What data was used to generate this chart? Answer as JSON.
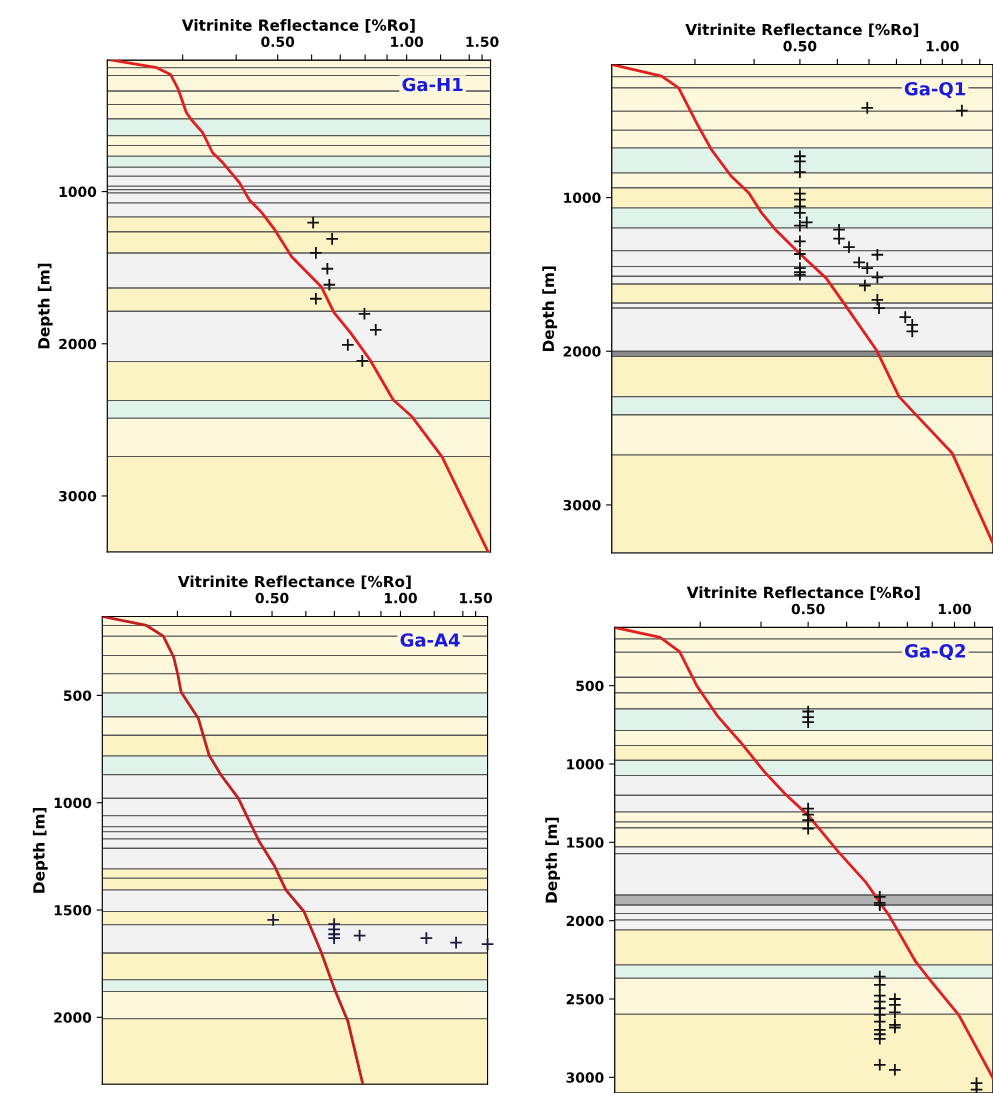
{
  "chart_data": [
    {
      "type": "line",
      "xlabel": "Vitrinite Reflectance [%Ro]",
      "ylabel": "Depth [m]",
      "annotations": [
        "Ga-H1"
      ],
      "log": "x",
      "xlim": [
        0.2,
        1.57
      ],
      "ylim": [
        3368,
        136
      ],
      "xticks": [
        {
          "value": 0.3,
          "label": null
        },
        {
          "value": 0.4,
          "label": null
        },
        {
          "value": 0.5,
          "label": "0.50"
        },
        {
          "value": 0.6,
          "label": null
        },
        {
          "value": 0.7,
          "label": null
        },
        {
          "value": 0.8,
          "label": null
        },
        {
          "value": 0.9,
          "label": null
        },
        {
          "value": 1.0,
          "label": "1.00"
        },
        {
          "value": 1.2,
          "label": null
        },
        {
          "value": 1.4,
          "label": null
        },
        {
          "value": 1.5,
          "label": "1.50"
        }
      ],
      "yticks": [
        1000,
        2000,
        3000
      ],
      "series": [
        {
          "color": "#e02020",
          "x": [
            0.205,
            0.261,
            0.281,
            0.293,
            0.306,
            0.314,
            0.334,
            0.352,
            0.372,
            0.407,
            0.429,
            0.459,
            0.492,
            0.539,
            0.632,
            0.677,
            0.74,
            0.821,
            0.93,
            1.03,
            1.21,
            1.55
          ],
          "values": [
            136,
            186,
            230,
            329,
            480,
            526,
            612,
            743,
            809,
            941,
            1053,
            1138,
            1250,
            1428,
            1625,
            1796,
            1928,
            2105,
            2368,
            2480,
            2743,
            3368
          ]
        },
        {
          "type": "scatter",
          "marker": "cross",
          "color": "#111111",
          "x": [
            0.605,
            0.67,
            0.614,
            0.653,
            0.66,
            0.614,
            0.797,
            0.847,
            0.729,
            0.788
          ],
          "values": [
            1204,
            1311,
            1403,
            1507,
            1612,
            1704,
            1803,
            1908,
            2007,
            2112
          ]
        }
      ],
      "bands": [
        {
          "axis": "y",
          "from": 136,
          "to": 186,
          "color": "#fdf8dc"
        },
        {
          "axis": "y",
          "from": 186,
          "to": 237,
          "color": "#fdf8dc"
        },
        {
          "axis": "y",
          "from": 237,
          "to": 340,
          "color": "#fdf8dc"
        },
        {
          "axis": "y",
          "from": 340,
          "to": 428,
          "color": "#fdf8dc"
        },
        {
          "axis": "y",
          "from": 428,
          "to": 522,
          "color": "#fdf8dc"
        },
        {
          "axis": "y",
          "from": 522,
          "to": 632,
          "color": "#e0f3ea"
        },
        {
          "axis": "y",
          "from": 632,
          "to": 697,
          "color": "#fdf8dc"
        },
        {
          "axis": "y",
          "from": 697,
          "to": 768,
          "color": "#fdf8dc"
        },
        {
          "axis": "y",
          "from": 768,
          "to": 840,
          "color": "#e0f3ea"
        },
        {
          "axis": "y",
          "from": 840,
          "to": 899,
          "color": "#f2f2f2"
        },
        {
          "axis": "y",
          "from": 899,
          "to": 965,
          "color": "#f2f2f2"
        },
        {
          "axis": "y",
          "from": 965,
          "to": 987,
          "color": "#f2f2f2"
        },
        {
          "axis": "y",
          "from": 987,
          "to": 1009,
          "color": "#f2f2f2"
        },
        {
          "axis": "y",
          "from": 1009,
          "to": 1075,
          "color": "#f2f2f2"
        },
        {
          "axis": "y",
          "from": 1075,
          "to": 1167,
          "color": "#f2f2f2"
        },
        {
          "axis": "y",
          "from": 1167,
          "to": 1265,
          "color": "#fbf3c4"
        },
        {
          "axis": "y",
          "from": 1265,
          "to": 1404,
          "color": "#fbf3c4"
        },
        {
          "axis": "y",
          "from": 1404,
          "to": 1634,
          "color": "#f2f2f2"
        },
        {
          "axis": "y",
          "from": 1634,
          "to": 1787,
          "color": "#fbf3c4"
        },
        {
          "axis": "y",
          "from": 1787,
          "to": 2116,
          "color": "#f2f2f2"
        },
        {
          "axis": "y",
          "from": 2116,
          "to": 2373,
          "color": "#fbf3c4"
        },
        {
          "axis": "y",
          "from": 2373,
          "to": 2489,
          "color": "#e0f3ea"
        },
        {
          "axis": "y",
          "from": 2489,
          "to": 2741,
          "color": "#fdf8dc"
        },
        {
          "axis": "y",
          "from": 2741,
          "to": 3368,
          "color": "#fbf3c4"
        }
      ]
    },
    {
      "type": "line",
      "xlabel": "Vitrinite Reflectance [%Ro]",
      "ylabel": "Depth [m]",
      "annotations": [
        "Ga-Q1"
      ],
      "log": "x",
      "xlim": [
        0.2,
        1.28
      ],
      "ylim": [
        3313,
        134
      ],
      "xticks": [
        {
          "value": 0.3,
          "label": null
        },
        {
          "value": 0.4,
          "label": null
        },
        {
          "value": 0.5,
          "label": "0.50"
        },
        {
          "value": 0.6,
          "label": null
        },
        {
          "value": 0.7,
          "label": null
        },
        {
          "value": 0.8,
          "label": null
        },
        {
          "value": 0.9,
          "label": null
        },
        {
          "value": 1.0,
          "label": "1.00"
        },
        {
          "value": 1.1,
          "label": null
        },
        {
          "value": 1.2,
          "label": null
        }
      ],
      "yticks": [
        1000,
        2000,
        3000
      ],
      "series": [
        {
          "color": "#e02020",
          "x": [
            0.2,
            0.255,
            0.277,
            0.305,
            0.325,
            0.358,
            0.39,
            0.415,
            0.444,
            0.498,
            0.568,
            0.626,
            0.725,
            0.81,
            0.88,
            1.05,
            1.28
          ],
          "values": [
            134,
            210,
            286,
            536,
            688,
            861,
            970,
            1100,
            1209,
            1361,
            1524,
            1708,
            1990,
            2295,
            2414,
            2664,
            3250
          ]
        },
        {
          "type": "scatter",
          "marker": "cross",
          "color": "#111111",
          "x": [
            0.694,
            1.1,
            0.5,
            0.5,
            0.5,
            0.5,
            0.5,
            0.5,
            0.5,
            0.517,
            0.5,
            0.5,
            0.5,
            0.5,
            0.5,
            0.5,
            0.605,
            0.605,
            0.635,
            0.729,
            0.667,
            0.694,
            0.729,
            0.686,
            0.729,
            0.735,
            0.835,
            0.864,
            0.864
          ],
          "values": [
            416,
            434,
            731,
            764,
            835,
            974,
            1013,
            1057,
            1100,
            1161,
            1183,
            1285,
            1367,
            1459,
            1485,
            1502,
            1209,
            1267,
            1322,
            1372,
            1422,
            1459,
            1519,
            1572,
            1665,
            1719,
            1778,
            1828,
            1871
          ]
        }
      ],
      "bands": [
        {
          "axis": "y",
          "from": 134,
          "to": 214,
          "color": "#fdf8dc"
        },
        {
          "axis": "y",
          "from": 214,
          "to": 286,
          "color": "#fdf8dc"
        },
        {
          "axis": "y",
          "from": 286,
          "to": 438,
          "color": "#fdf8dc"
        },
        {
          "axis": "y",
          "from": 438,
          "to": 562,
          "color": "#fdf8dc"
        },
        {
          "axis": "y",
          "from": 562,
          "to": 677,
          "color": "#fdf8dc"
        },
        {
          "axis": "y",
          "from": 677,
          "to": 840,
          "color": "#e0f3ea"
        },
        {
          "axis": "y",
          "from": 840,
          "to": 937,
          "color": "#fdf8dc"
        },
        {
          "axis": "y",
          "from": 937,
          "to": 1068,
          "color": "#fbf3c4"
        },
        {
          "axis": "y",
          "from": 1068,
          "to": 1198,
          "color": "#e0f3ea"
        },
        {
          "axis": "y",
          "from": 1198,
          "to": 1346,
          "color": "#f2f2f2"
        },
        {
          "axis": "y",
          "from": 1346,
          "to": 1448,
          "color": "#f2f2f2"
        },
        {
          "axis": "y",
          "from": 1448,
          "to": 1513,
          "color": "#f2f2f2"
        },
        {
          "axis": "y",
          "from": 1513,
          "to": 1563,
          "color": "#f2f2f2"
        },
        {
          "axis": "y",
          "from": 1563,
          "to": 1687,
          "color": "#fbf3c4"
        },
        {
          "axis": "y",
          "from": 1687,
          "to": 1719,
          "color": "#f2f2f2"
        },
        {
          "axis": "y",
          "from": 1719,
          "to": 2001,
          "color": "#f2f2f2"
        },
        {
          "axis": "y",
          "from": 2001,
          "to": 2034,
          "color": "#8a8a8a"
        },
        {
          "axis": "y",
          "from": 2034,
          "to": 2295,
          "color": "#fbf3c4"
        },
        {
          "axis": "y",
          "from": 2295,
          "to": 2414,
          "color": "#e0f3ea"
        },
        {
          "axis": "y",
          "from": 2414,
          "to": 2675,
          "color": "#fdf8dc"
        },
        {
          "axis": "y",
          "from": 2675,
          "to": 3313,
          "color": "#fbf3c4"
        }
      ]
    },
    {
      "type": "line",
      "xlabel": "Vitrinite Reflectance [%Ro]",
      "ylabel": "Depth [m]",
      "annotations": [
        "Ga-A4"
      ],
      "log": "x",
      "xlim": [
        0.2,
        1.6
      ],
      "ylim": [
        2312,
        132
      ],
      "xticks": [
        {
          "value": 0.3,
          "label": null
        },
        {
          "value": 0.4,
          "label": null
        },
        {
          "value": 0.5,
          "label": "0.50"
        },
        {
          "value": 0.6,
          "label": null
        },
        {
          "value": 0.7,
          "label": null
        },
        {
          "value": 0.8,
          "label": null
        },
        {
          "value": 0.9,
          "label": null
        },
        {
          "value": 1.0,
          "label": "1.00"
        },
        {
          "value": 1.2,
          "label": null
        },
        {
          "value": 1.4,
          "label": null
        },
        {
          "value": 1.5,
          "label": "1.50"
        }
      ],
      "yticks": [
        500,
        1000,
        1500,
        2000
      ],
      "series": [
        {
          "color": "#c02020",
          "x": [
            0.2,
            0.254,
            0.278,
            0.294,
            0.301,
            0.306,
            0.336,
            0.356,
            0.38,
            0.417,
            0.439,
            0.467,
            0.505,
            0.539,
            0.594,
            0.651,
            0.699,
            0.753,
            0.816
          ],
          "values": [
            132,
            174,
            224,
            321,
            407,
            484,
            608,
            779,
            872,
            980,
            1073,
            1182,
            1290,
            1407,
            1507,
            1693,
            1864,
            2019,
            2312
          ]
        },
        {
          "type": "scatter",
          "marker": "cross",
          "color": "#1a1a3a",
          "x": [
            0.503,
            0.699,
            0.699,
            0.699,
            0.699,
            0.802,
            1.15,
            1.35,
            1.6
          ],
          "values": [
            1546,
            1566,
            1590,
            1613,
            1631,
            1619,
            1631,
            1652,
            1659
          ]
        }
      ],
      "bands": [
        {
          "axis": "y",
          "from": 132,
          "to": 174,
          "color": "#fdf8dc"
        },
        {
          "axis": "y",
          "from": 174,
          "to": 224,
          "color": "#fdf8dc"
        },
        {
          "axis": "y",
          "from": 224,
          "to": 314,
          "color": "#fdf8dc"
        },
        {
          "axis": "y",
          "from": 314,
          "to": 399,
          "color": "#fdf8dc"
        },
        {
          "axis": "y",
          "from": 399,
          "to": 489,
          "color": "#fdf8dc"
        },
        {
          "axis": "y",
          "from": 489,
          "to": 600,
          "color": "#e0f3ea"
        },
        {
          "axis": "y",
          "from": 600,
          "to": 686,
          "color": "#fdf8dc"
        },
        {
          "axis": "y",
          "from": 686,
          "to": 782,
          "color": "#fbf3c4"
        },
        {
          "axis": "y",
          "from": 782,
          "to": 869,
          "color": "#e0f3ea"
        },
        {
          "axis": "y",
          "from": 869,
          "to": 980,
          "color": "#f2f2f2"
        },
        {
          "axis": "y",
          "from": 980,
          "to": 1061,
          "color": "#f2f2f2"
        },
        {
          "axis": "y",
          "from": 1061,
          "to": 1112,
          "color": "#f2f2f2"
        },
        {
          "axis": "y",
          "from": 1112,
          "to": 1135,
          "color": "#f2f2f2"
        },
        {
          "axis": "y",
          "from": 1135,
          "to": 1169,
          "color": "#f2f2f2"
        },
        {
          "axis": "y",
          "from": 1169,
          "to": 1213,
          "color": "#f2f2f2"
        },
        {
          "axis": "y",
          "from": 1213,
          "to": 1309,
          "color": "#f2f2f2"
        },
        {
          "axis": "y",
          "from": 1309,
          "to": 1352,
          "color": "#fbf3c4"
        },
        {
          "axis": "y",
          "from": 1352,
          "to": 1407,
          "color": "#fbf3c4"
        },
        {
          "axis": "y",
          "from": 1407,
          "to": 1507,
          "color": "#f2f2f2"
        },
        {
          "axis": "y",
          "from": 1507,
          "to": 1569,
          "color": "#fbf3c4"
        },
        {
          "axis": "y",
          "from": 1569,
          "to": 1701,
          "color": "#f2f2f2"
        },
        {
          "axis": "y",
          "from": 1701,
          "to": 1825,
          "color": "#fbf3c4"
        },
        {
          "axis": "y",
          "from": 1825,
          "to": 1880,
          "color": "#e0f3ea"
        },
        {
          "axis": "y",
          "from": 1880,
          "to": 2007,
          "color": "#fdf8dc"
        },
        {
          "axis": "y",
          "from": 2007,
          "to": 2312,
          "color": "#fbf3c4"
        }
      ]
    },
    {
      "type": "line",
      "xlabel": "Vitrinite Reflectance [%Ro]",
      "ylabel": "Depth [m]",
      "annotations": [
        "Ga-Q2"
      ],
      "log": "x",
      "xlim": [
        0.2,
        1.2
      ],
      "ylim": [
        3100,
        128
      ],
      "xticks": [
        {
          "value": 0.3,
          "label": null
        },
        {
          "value": 0.4,
          "label": null
        },
        {
          "value": 0.5,
          "label": "0.50"
        },
        {
          "value": 0.6,
          "label": null
        },
        {
          "value": 0.7,
          "label": null
        },
        {
          "value": 0.8,
          "label": null
        },
        {
          "value": 0.9,
          "label": null
        },
        {
          "value": 1.0,
          "label": "1.00"
        },
        {
          "value": 1.1,
          "label": null
        }
      ],
      "yticks": [
        500,
        1000,
        1500,
        2000,
        2500,
        3000
      ],
      "series": [
        {
          "color": "#e02020",
          "x": [
            0.2,
            0.248,
            0.272,
            0.295,
            0.325,
            0.363,
            0.407,
            0.448,
            0.5,
            0.577,
            0.656,
            0.733,
            0.832,
            0.885,
            1.02,
            1.2
          ],
          "values": [
            128,
            192,
            283,
            500,
            691,
            861,
            1052,
            1190,
            1328,
            1561,
            1752,
            1965,
            2262,
            2368,
            2601,
            3005
          ]
        },
        {
          "type": "scatter",
          "marker": "cross",
          "color": "#111111",
          "x": [
            0.5,
            0.5,
            0.5,
            0.5,
            0.5,
            0.5,
            0.5,
            0.702,
            0.702,
            0.702,
            0.702,
            0.702,
            0.702,
            0.702,
            0.702,
            0.702,
            0.702,
            0.702,
            0.702,
            0.702,
            0.754,
            0.754,
            0.754,
            0.754,
            0.754,
            0.702,
            0.754,
            1.11,
            1.11
          ],
          "values": [
            665,
            701,
            733,
            1285,
            1323,
            1359,
            1413,
            1848,
            1886,
            1901,
            2357,
            2410,
            2478,
            2517,
            2559,
            2601,
            2644,
            2697,
            2725,
            2754,
            2500,
            2538,
            2585,
            2665,
            2682,
            2920,
            2952,
            3037,
            3079
          ]
        }
      ],
      "bands": [
        {
          "axis": "y",
          "from": 128,
          "to": 202,
          "color": "#fdf8dc"
        },
        {
          "axis": "y",
          "from": 202,
          "to": 287,
          "color": "#fdf8dc"
        },
        {
          "axis": "y",
          "from": 287,
          "to": 447,
          "color": "#fdf8dc"
        },
        {
          "axis": "y",
          "from": 447,
          "to": 546,
          "color": "#fdf8dc"
        },
        {
          "axis": "y",
          "from": 546,
          "to": 648,
          "color": "#fdf8dc"
        },
        {
          "axis": "y",
          "from": 648,
          "to": 786,
          "color": "#e0f3ea"
        },
        {
          "axis": "y",
          "from": 786,
          "to": 882,
          "color": "#fdf8dc"
        },
        {
          "axis": "y",
          "from": 882,
          "to": 977,
          "color": "#fbf3c4"
        },
        {
          "axis": "y",
          "from": 977,
          "to": 1073,
          "color": "#e0f3ea"
        },
        {
          "axis": "y",
          "from": 1073,
          "to": 1200,
          "color": "#f2f2f2"
        },
        {
          "axis": "y",
          "from": 1200,
          "to": 1306,
          "color": "#f2f2f2"
        },
        {
          "axis": "y",
          "from": 1306,
          "to": 1370,
          "color": "#fdf8dc"
        },
        {
          "axis": "y",
          "from": 1370,
          "to": 1408,
          "color": "#fdf8dc"
        },
        {
          "axis": "y",
          "from": 1408,
          "to": 1529,
          "color": "#fdf8dc"
        },
        {
          "axis": "y",
          "from": 1529,
          "to": 1572,
          "color": "#f2f2f2"
        },
        {
          "axis": "y",
          "from": 1572,
          "to": 1837,
          "color": "#f2f2f2"
        },
        {
          "axis": "y",
          "from": 1837,
          "to": 1901,
          "color": "#b0b0b0"
        },
        {
          "axis": "y",
          "from": 1901,
          "to": 1954,
          "color": "#f2f2f2"
        },
        {
          "axis": "y",
          "from": 1954,
          "to": 1996,
          "color": "#f2f2f2"
        },
        {
          "axis": "y",
          "from": 1996,
          "to": 2060,
          "color": "#f2f2f2"
        },
        {
          "axis": "y",
          "from": 2060,
          "to": 2283,
          "color": "#fbf3c4"
        },
        {
          "axis": "y",
          "from": 2283,
          "to": 2368,
          "color": "#e0f3ea"
        },
        {
          "axis": "y",
          "from": 2368,
          "to": 2597,
          "color": "#fdf8dc"
        },
        {
          "axis": "y",
          "from": 2597,
          "to": 3100,
          "color": "#fbf3c4"
        }
      ]
    }
  ]
}
